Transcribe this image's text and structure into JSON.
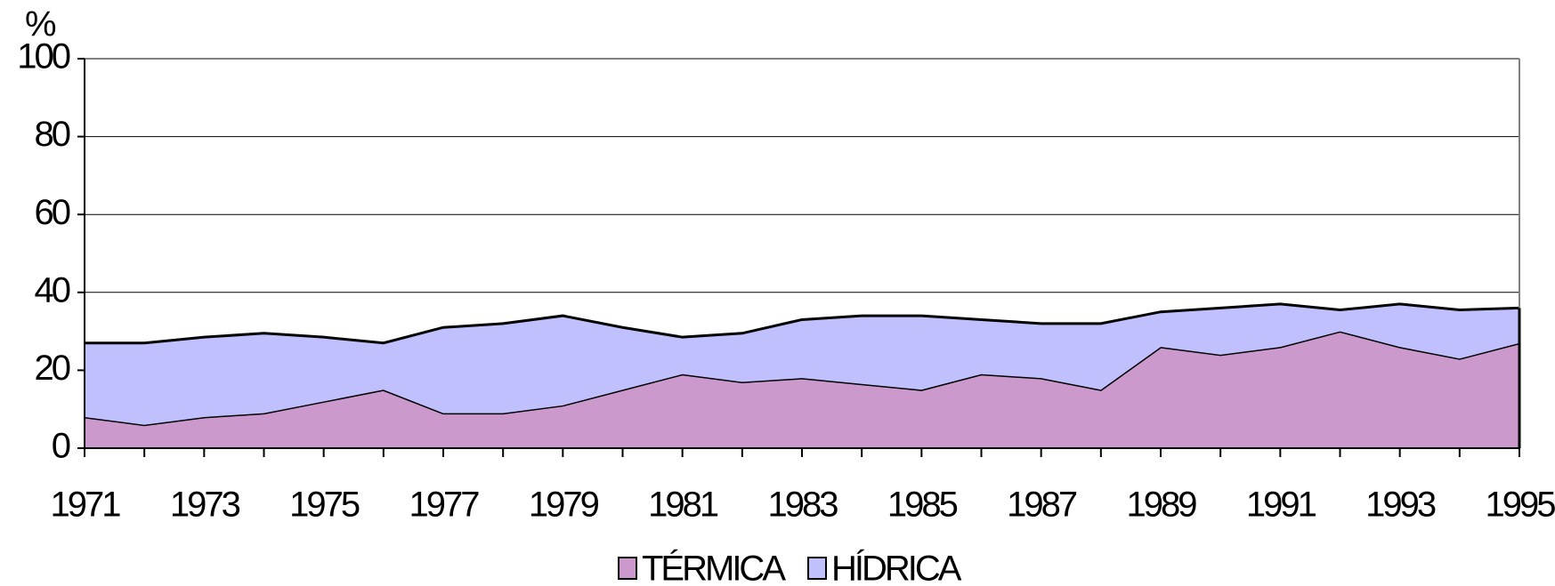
{
  "chart_data": {
    "type": "stacked-area",
    "y_label": "%",
    "x": [
      1971,
      1972,
      1973,
      1974,
      1975,
      1976,
      1977,
      1978,
      1979,
      1980,
      1981,
      1982,
      1983,
      1984,
      1985,
      1986,
      1987,
      1988,
      1989,
      1990,
      1991,
      1992,
      1993,
      1994,
      1995
    ],
    "xlim": [
      1971,
      1995
    ],
    "xticks": [
      1971,
      1973,
      1975,
      1977,
      1979,
      1981,
      1983,
      1985,
      1987,
      1989,
      1991,
      1993,
      1995
    ],
    "ylim": [
      0,
      100
    ],
    "yticks": [
      0,
      20,
      40,
      60,
      80,
      100
    ],
    "grid": true,
    "legend": "bottom",
    "series": [
      {
        "name": "TÉRMICA",
        "color": "#cc99cc",
        "values": [
          8,
          6,
          8,
          9,
          12,
          15,
          9,
          9,
          11,
          15,
          19,
          17,
          18,
          16.5,
          15,
          19,
          18,
          15,
          26,
          24,
          26,
          30,
          26,
          23,
          27
        ]
      },
      {
        "name": "HÍDRICA",
        "color": "#c0c0ff",
        "values": [
          19,
          21,
          20.5,
          20.5,
          16.5,
          12,
          22,
          23,
          23,
          16,
          9.5,
          12.5,
          15,
          17.5,
          19,
          14,
          14,
          17,
          9,
          12,
          11,
          5.5,
          11,
          12.5,
          9
        ]
      }
    ]
  }
}
